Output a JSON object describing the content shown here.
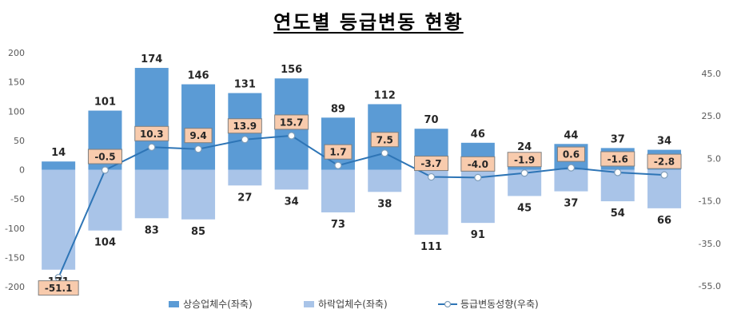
{
  "chart_data": {
    "type": "bar",
    "title": "연도별 등급변동 현황",
    "categories": [
      "",
      "",
      "",
      "",
      "",
      "",
      "",
      "",
      "",
      "",
      "",
      "",
      "",
      ""
    ],
    "series": [
      {
        "name": "상승업체수(좌축)",
        "type": "bar",
        "axis": "left",
        "color": "#5b9bd5",
        "values": [
          14,
          101,
          174,
          146,
          131,
          156,
          89,
          112,
          70,
          46,
          24,
          44,
          37,
          34
        ]
      },
      {
        "name": "하락업체수(좌축)",
        "type": "bar",
        "axis": "left",
        "color": "#a9c4e8",
        "values": [
          171,
          104,
          83,
          85,
          27,
          34,
          73,
          38,
          111,
          91,
          45,
          37,
          54,
          66
        ]
      },
      {
        "name": "등급변동성향(우축)",
        "type": "line",
        "axis": "right",
        "color": "#2e75b6",
        "values": [
          -51.1,
          -0.5,
          10.3,
          9.4,
          13.9,
          15.7,
          1.7,
          7.5,
          -3.7,
          -4.0,
          -1.9,
          0.6,
          -1.6,
          -2.8
        ]
      }
    ],
    "y_left": {
      "ylim": [
        -200,
        200
      ],
      "ticks": [
        "200",
        "150",
        "100",
        "50",
        "0",
        "-50",
        "-100",
        "-150",
        "-200"
      ]
    },
    "y_right": {
      "ylim": [
        -55,
        45
      ],
      "ticks": [
        "45.0",
        "25.0",
        "5.0",
        "-15.0",
        "-35.0",
        "-55.0"
      ]
    },
    "legend_position": "bottom",
    "grid": false
  }
}
